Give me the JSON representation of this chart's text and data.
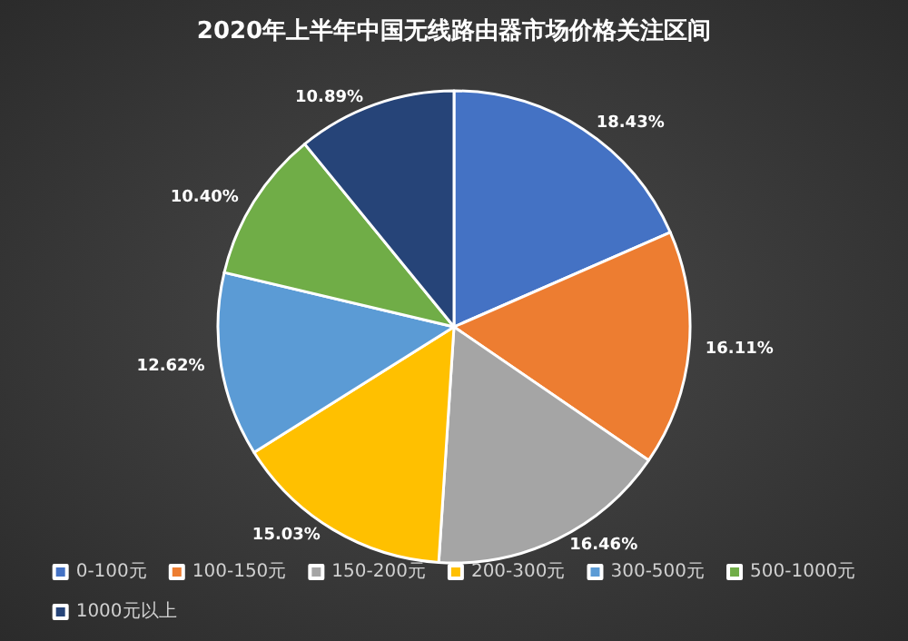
{
  "chart_data": {
    "type": "pie",
    "title": "2020年上半年中国无线路由器市场价格关注区间",
    "categories": [
      "0-100元",
      "100-150元",
      "150-200元",
      "200-300元",
      "300-500元",
      "500-1000元",
      "1000元以上"
    ],
    "values": [
      18.43,
      16.11,
      16.46,
      15.03,
      12.62,
      10.4,
      10.89
    ],
    "value_labels": [
      "18.43%",
      "16.11%",
      "16.46%",
      "15.03%",
      "12.62%",
      "10.40%",
      "10.89%"
    ],
    "colors": [
      "#4472c4",
      "#ed7d31",
      "#a5a5a5",
      "#ffc000",
      "#5b9bd5",
      "#70ad47",
      "#264478"
    ],
    "legend": "bottom"
  }
}
